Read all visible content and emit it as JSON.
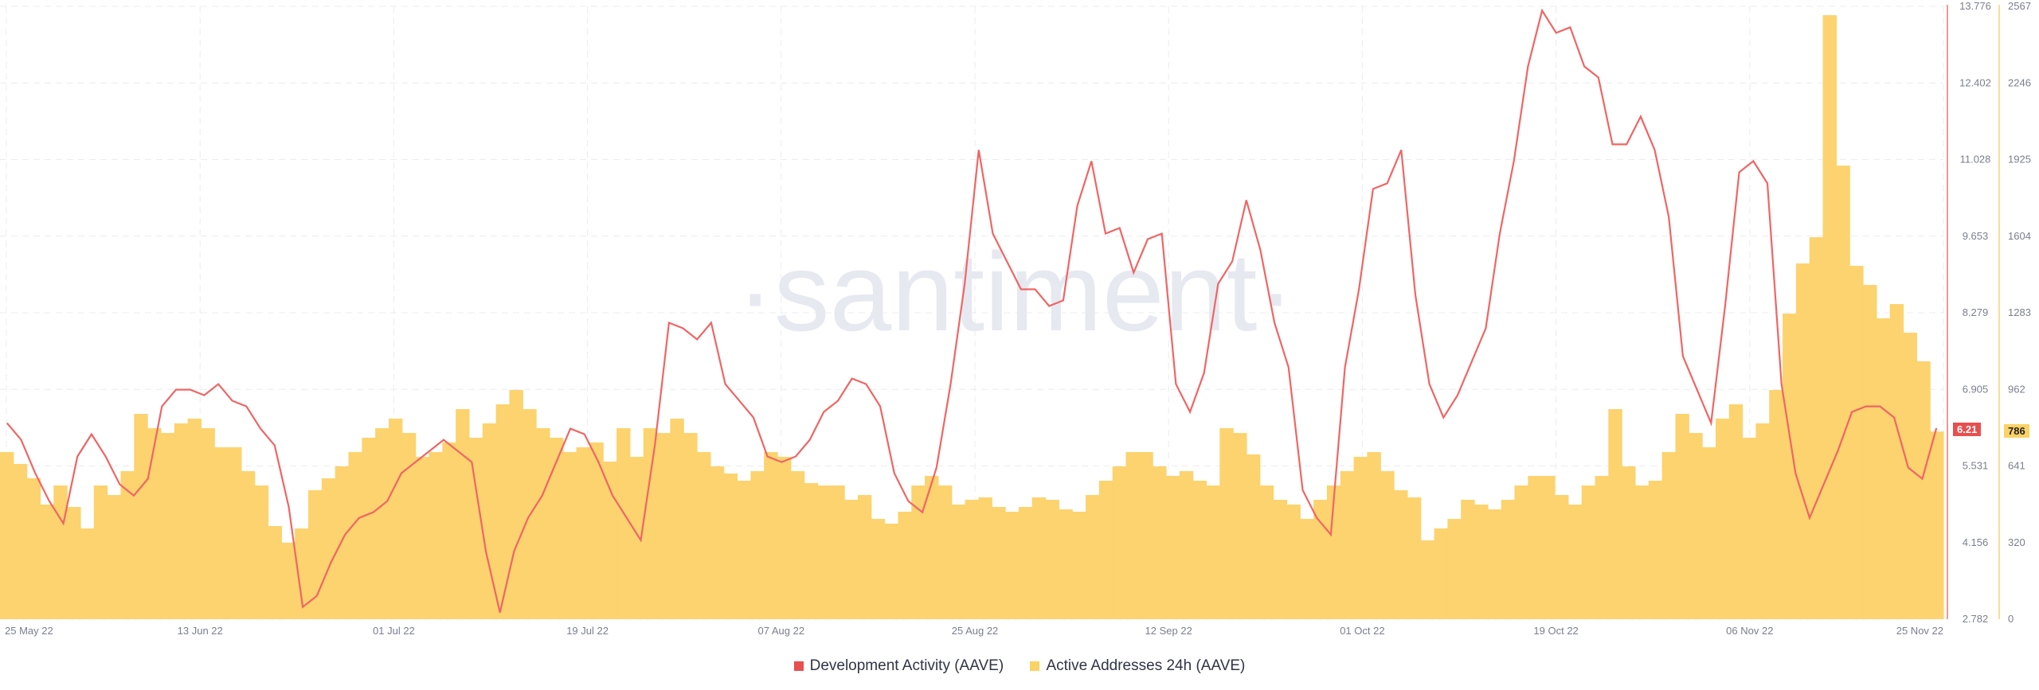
{
  "chart_data": {
    "type": "line+bar",
    "watermark": "·santiment·",
    "x_labels": [
      "25 May 22",
      "13 Jun 22",
      "01 Jul 22",
      "19 Jul 22",
      "07 Aug 22",
      "25 Aug 22",
      "12 Sep 22",
      "01 Oct 22",
      "19 Oct 22",
      "06 Nov 22",
      "25 Nov 22"
    ],
    "left_axis": {
      "name": "Development Activity (AAVE)",
      "ticks": [
        "13.776",
        "12.402",
        "11.028",
        "9.653",
        "8.279",
        "6.905",
        "5.531",
        "4.156",
        "2.782"
      ],
      "ylim": [
        2.782,
        13.776
      ],
      "current": "6.21"
    },
    "right_axis": {
      "name": "Active Addresses 24h (AAVE)",
      "ticks": [
        "2567",
        "2246",
        "1925",
        "1604",
        "1283",
        "962",
        "641",
        "320",
        "0"
      ],
      "ylim": [
        0,
        2567
      ],
      "current": "786"
    },
    "colors": {
      "line": "#f06565",
      "bars": "#fcd36e",
      "line_badge": "#e84f4f",
      "bar_badge": "#fbd266",
      "axis_left": "#f07575",
      "axis_right": "#f5d27a"
    },
    "series": [
      {
        "name": "Development Activity (AAVE)",
        "type": "line",
        "values": [
          6.3,
          6.0,
          5.4,
          4.9,
          4.5,
          5.7,
          6.1,
          5.7,
          5.2,
          5.0,
          5.3,
          6.6,
          6.9,
          6.9,
          6.8,
          7.0,
          6.7,
          6.6,
          6.2,
          5.9,
          4.8,
          3.0,
          3.2,
          3.8,
          4.3,
          4.6,
          4.7,
          4.9,
          5.4,
          5.6,
          5.8,
          6.0,
          5.8,
          5.6,
          4.0,
          2.9,
          4.0,
          4.6,
          5.0,
          5.6,
          6.2,
          6.1,
          5.6,
          5.0,
          4.6,
          4.2,
          5.9,
          8.1,
          8.0,
          7.8,
          8.1,
          7.0,
          6.7,
          6.4,
          5.7,
          5.6,
          5.7,
          6.0,
          6.5,
          6.7,
          7.1,
          7.0,
          6.6,
          5.4,
          4.9,
          4.7,
          5.5,
          7.0,
          8.8,
          11.2,
          9.7,
          9.2,
          8.7,
          8.7,
          8.4,
          8.5,
          10.2,
          11.0,
          9.7,
          9.8,
          9.0,
          9.6,
          9.7,
          7.0,
          6.5,
          7.2,
          8.8,
          9.2,
          10.3,
          9.4,
          8.1,
          7.3,
          5.1,
          4.6,
          4.3,
          7.3,
          8.7,
          10.5,
          10.6,
          11.2,
          8.6,
          7.0,
          6.4,
          6.8,
          7.4,
          8.0,
          9.7,
          11.0,
          12.7,
          13.7,
          13.3,
          13.4,
          12.7,
          12.5,
          11.3,
          11.3,
          11.8,
          11.2,
          10.0,
          7.5,
          6.9,
          6.3,
          8.4,
          10.8,
          11.0,
          10.6,
          7.0,
          5.4,
          4.6,
          5.2,
          5.8,
          6.5,
          6.6,
          6.6,
          6.4,
          5.5,
          5.3,
          6.21
        ]
      },
      {
        "name": "Active Addresses 24h (AAVE)",
        "type": "bar",
        "values": [
          700,
          650,
          590,
          480,
          560,
          470,
          380,
          560,
          520,
          620,
          860,
          800,
          780,
          820,
          840,
          800,
          720,
          720,
          620,
          560,
          390,
          320,
          380,
          540,
          590,
          640,
          700,
          760,
          800,
          840,
          780,
          680,
          700,
          740,
          880,
          760,
          820,
          900,
          960,
          880,
          800,
          760,
          700,
          720,
          740,
          660,
          800,
          680,
          800,
          780,
          840,
          780,
          700,
          640,
          610,
          580,
          620,
          700,
          680,
          620,
          570,
          560,
          560,
          500,
          520,
          420,
          400,
          450,
          560,
          600,
          560,
          480,
          500,
          510,
          470,
          450,
          470,
          510,
          500,
          460,
          450,
          520,
          580,
          640,
          700,
          700,
          640,
          600,
          620,
          580,
          560,
          800,
          780,
          690,
          560,
          500,
          480,
          420,
          500,
          560,
          620,
          680,
          700,
          620,
          540,
          510,
          330,
          380,
          420,
          500,
          480,
          460,
          500,
          560,
          600,
          600,
          520,
          480,
          560,
          600,
          880,
          640,
          560,
          580,
          700,
          860,
          780,
          720,
          840,
          900,
          760,
          820,
          960,
          1280,
          1490,
          1600,
          2530,
          1900,
          1480,
          1400,
          1260,
          1320,
          1200,
          1080,
          786
        ]
      }
    ]
  }
}
